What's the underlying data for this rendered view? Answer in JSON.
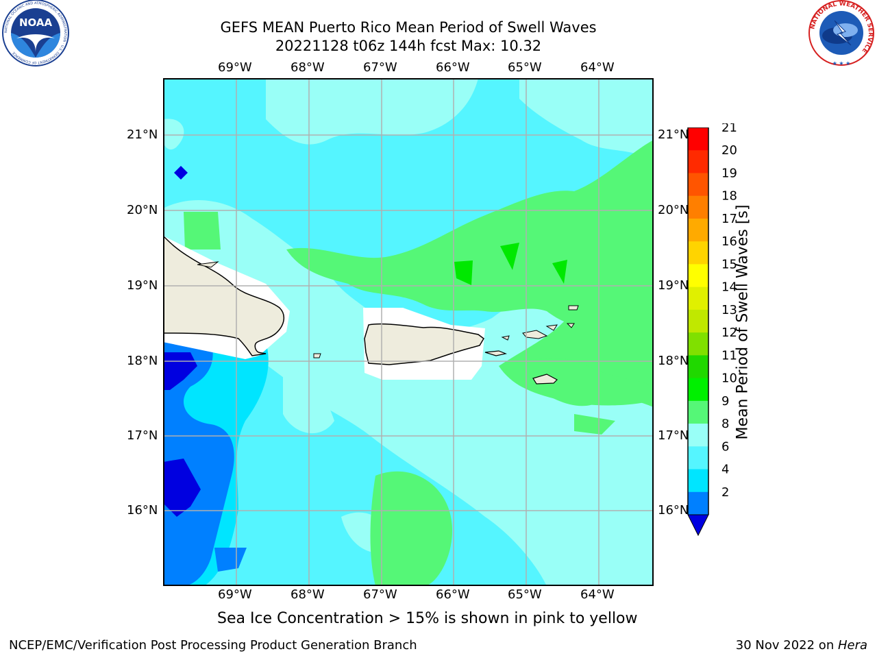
{
  "header": {
    "title_line1": "GEFS MEAN Puerto Rico Mean Period of Swell Waves",
    "title_line2": "20221128 t06z 144h fcst   Max: 10.32"
  },
  "logos": {
    "noaa_text": "NOAA",
    "noaa_ring": "NATIONAL OCEANIC AND ATMOSPHERIC ADMINISTRATION · U.S. DEPARTMENT OF COMMERCE",
    "nws_ring": "NATIONAL WEATHER SERVICE"
  },
  "map": {
    "lon_labels": [
      "69°W",
      "68°W",
      "67°W",
      "66°W",
      "65°W",
      "64°W"
    ],
    "lat_labels": [
      "21°N",
      "20°N",
      "19°N",
      "18°N",
      "17°N",
      "16°N"
    ],
    "colors": {
      "land": "#eeecdd",
      "coast": "#000000",
      "grid": "#b0b0b0",
      "band_2_4": "#0080ff",
      "band_4_6": "#00e5ff",
      "band_6_8": "#55f5ff",
      "band_8_9": "#99fff7",
      "band_9_10": "#55f777",
      "band_10_11": "#00e800",
      "band_deep": "#0000e0"
    }
  },
  "colorbar": {
    "label": "Mean Period of Swell Waves [s]",
    "ticks": [
      "21",
      "20",
      "19",
      "18",
      "17",
      "16",
      "15",
      "14",
      "13",
      "12",
      "11",
      "10",
      "9",
      "8",
      "6",
      "4",
      "2"
    ],
    "colors_top_to_bottom": [
      "#ff0000",
      "#ff2a00",
      "#ff5500",
      "#ff7f00",
      "#ffaa00",
      "#ffd400",
      "#ffff00",
      "#e0f000",
      "#c0e800",
      "#80e000",
      "#20d800",
      "#00f000",
      "#55f777",
      "#99fff7",
      "#55f5ff",
      "#00e5ff",
      "#0080ff",
      "#0000e0"
    ]
  },
  "notes": {
    "sea_ice": "Sea Ice Concentration > 15% is shown in pink to yellow"
  },
  "footer": {
    "left": "NCEP/EMC/Verification Post Processing Product Generation Branch",
    "date": "30 Nov 2022 on ",
    "host": "Hera"
  }
}
